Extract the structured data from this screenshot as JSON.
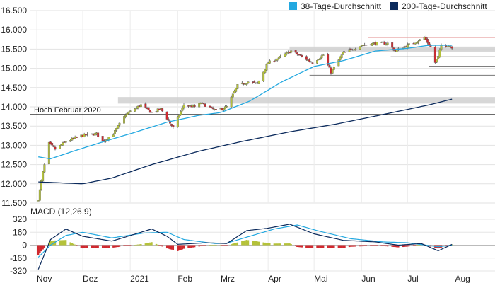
{
  "chart_data": [
    {
      "type": "candlestick",
      "panel": "price",
      "legend": {
        "placement": "top-right",
        "items": [
          {
            "label": "38-Tage-Durchschnitt",
            "color": "#23a8e0"
          },
          {
            "label": "200-Tage-Durchschnitt",
            "color": "#0b2a5c"
          }
        ]
      },
      "ylim": [
        11500,
        16500
      ],
      "y_ticks": [
        "16.500",
        "16.000",
        "15.500",
        "15.000",
        "14.500",
        "14.000",
        "13.500",
        "13.000",
        "12.500",
        "12.000",
        "11.500"
      ],
      "y_tick_values": [
        16500,
        16000,
        15500,
        15000,
        14500,
        14000,
        13500,
        13000,
        12500,
        12000,
        11500
      ],
      "x_ticks": [
        {
          "label": "Nov",
          "date": "2020-11-01"
        },
        {
          "label": "Dez",
          "date": "2020-12-01"
        },
        {
          "label": "2021",
          "date": "2021-01-01"
        },
        {
          "label": "Feb",
          "date": "2021-02-01"
        },
        {
          "label": "Mrz",
          "date": "2021-03-01"
        },
        {
          "label": "Apr",
          "date": "2021-04-01"
        },
        {
          "label": "Mai",
          "date": "2021-05-01"
        },
        {
          "label": "Jun",
          "date": "2021-06-01"
        },
        {
          "label": "Jul",
          "date": "2021-07-01"
        },
        {
          "label": "Aug",
          "date": "2021-08-01"
        }
      ],
      "grid": true,
      "colors": {
        "up": "#b5c23a",
        "down": "#d0282e",
        "ma38": "#23a8e0",
        "ma200": "#0b2a5c"
      },
      "annotation": {
        "label": "Hoch Februar 2020",
        "value": 13795
      },
      "bands": [
        {
          "from": 14140,
          "to": 14200,
          "x_start": "2020-12-24",
          "x_end": "2021-08-31",
          "color": "#d0d0d0"
        },
        {
          "from": 15490,
          "to": 15510,
          "x_start": "2021-04-15",
          "x_end": "2021-08-31",
          "color": "#d0d0d0"
        }
      ],
      "levels": [
        {
          "value": 15800,
          "x_start": "2021-06-05",
          "color": "#e8a0a0"
        },
        {
          "value": 15300,
          "x_start": "2021-06-20",
          "color": "#777777"
        },
        {
          "value": 15050,
          "x_start": "2021-07-15",
          "color": "#333333"
        },
        {
          "value": 14820,
          "x_start": "2021-04-28",
          "color": "#777777"
        }
      ],
      "anchors": [
        [
          "2020-11-02",
          11600
        ],
        [
          "2020-11-05",
          12300
        ],
        [
          "2020-11-09",
          13050
        ],
        [
          "2020-11-13",
          12900
        ],
        [
          "2020-11-20",
          13100
        ],
        [
          "2020-11-30",
          13250
        ],
        [
          "2020-12-10",
          13300
        ],
        [
          "2020-12-14",
          13100
        ],
        [
          "2020-12-21",
          13300
        ],
        [
          "2020-12-29",
          13800
        ],
        [
          "2021-01-08",
          14050
        ],
        [
          "2021-01-15",
          13850
        ],
        [
          "2021-01-21",
          13950
        ],
        [
          "2021-01-29",
          13450
        ],
        [
          "2021-02-05",
          14050
        ],
        [
          "2021-02-12",
          14000
        ],
        [
          "2021-02-16",
          14100
        ],
        [
          "2021-02-26",
          13900
        ],
        [
          "2021-03-05",
          14000
        ],
        [
          "2021-03-12",
          14550
        ],
        [
          "2021-03-19",
          14650
        ],
        [
          "2021-03-25",
          14600
        ],
        [
          "2021-04-01",
          15150
        ],
        [
          "2021-04-07",
          15250
        ],
        [
          "2021-04-16",
          15450
        ],
        [
          "2021-04-23",
          15300
        ],
        [
          "2021-04-30",
          15150
        ],
        [
          "2021-05-07",
          15350
        ],
        [
          "2021-05-12",
          14900
        ],
        [
          "2021-05-20",
          15400
        ],
        [
          "2021-06-01",
          15600
        ],
        [
          "2021-06-10",
          15650
        ],
        [
          "2021-06-18",
          15650
        ],
        [
          "2021-06-23",
          15450
        ],
        [
          "2021-07-01",
          15600
        ],
        [
          "2021-07-07",
          15700
        ],
        [
          "2021-07-12",
          15800
        ],
        [
          "2021-07-16",
          15550
        ],
        [
          "2021-07-19",
          15150
        ],
        [
          "2021-07-21",
          15300
        ],
        [
          "2021-07-23",
          15600
        ],
        [
          "2021-07-27",
          15600
        ],
        [
          "2021-07-30",
          15550
        ]
      ],
      "ma38_anchors": [
        [
          "2020-11-02",
          12700
        ],
        [
          "2020-11-10",
          12650
        ],
        [
          "2020-11-25",
          12850
        ],
        [
          "2020-12-15",
          13100
        ],
        [
          "2021-01-05",
          13350
        ],
        [
          "2021-01-25",
          13600
        ],
        [
          "2021-02-15",
          13780
        ],
        [
          "2021-03-01",
          13850
        ],
        [
          "2021-03-20",
          14150
        ],
        [
          "2021-04-10",
          14650
        ],
        [
          "2021-05-01",
          15050
        ],
        [
          "2021-05-20",
          15200
        ],
        [
          "2021-06-10",
          15450
        ],
        [
          "2021-07-01",
          15520
        ],
        [
          "2021-07-15",
          15600
        ],
        [
          "2021-07-30",
          15600
        ]
      ],
      "ma200_anchors": [
        [
          "2020-11-02",
          12050
        ],
        [
          "2020-12-01",
          12000
        ],
        [
          "2020-12-20",
          12150
        ],
        [
          "2021-01-15",
          12500
        ],
        [
          "2021-02-15",
          12850
        ],
        [
          "2021-03-15",
          13100
        ],
        [
          "2021-04-15",
          13350
        ],
        [
          "2021-05-15",
          13550
        ],
        [
          "2021-06-15",
          13800
        ],
        [
          "2021-07-15",
          14050
        ],
        [
          "2021-07-30",
          14200
        ]
      ]
    },
    {
      "type": "line+bar",
      "panel": "macd",
      "title": "MACD (12,26,9)",
      "ylim": [
        -320,
        320
      ],
      "y_ticks": [
        "320",
        "160",
        "0",
        "-160",
        "-320"
      ],
      "y_tick_values": [
        320,
        160,
        0,
        -160,
        -320
      ],
      "grid": true,
      "colors": {
        "macd": "#0b2a5c",
        "signal": "#23a8e0",
        "hist_pos": "#b5c23a",
        "hist_neg": "#d0282e"
      },
      "macd_anchors": [
        [
          "2020-11-02",
          -300
        ],
        [
          "2020-11-05",
          -160
        ],
        [
          "2020-11-10",
          70
        ],
        [
          "2020-11-20",
          200
        ],
        [
          "2020-12-01",
          110
        ],
        [
          "2020-12-20",
          50
        ],
        [
          "2021-01-08",
          160
        ],
        [
          "2021-01-15",
          200
        ],
        [
          "2021-01-25",
          110
        ],
        [
          "2021-02-01",
          10
        ],
        [
          "2021-02-20",
          30
        ],
        [
          "2021-03-05",
          20
        ],
        [
          "2021-03-18",
          180
        ],
        [
          "2021-04-01",
          210
        ],
        [
          "2021-04-15",
          260
        ],
        [
          "2021-05-01",
          140
        ],
        [
          "2021-05-20",
          60
        ],
        [
          "2021-06-10",
          40
        ],
        [
          "2021-06-25",
          0
        ],
        [
          "2021-07-10",
          20
        ],
        [
          "2021-07-21",
          -70
        ],
        [
          "2021-07-30",
          10
        ]
      ],
      "signal_anchors": [
        [
          "2020-11-02",
          -150
        ],
        [
          "2020-11-10",
          0
        ],
        [
          "2020-11-20",
          120
        ],
        [
          "2020-12-01",
          160
        ],
        [
          "2020-12-20",
          90
        ],
        [
          "2021-01-10",
          150
        ],
        [
          "2021-01-25",
          160
        ],
        [
          "2021-02-05",
          70
        ],
        [
          "2021-02-25",
          20
        ],
        [
          "2021-03-05",
          25
        ],
        [
          "2021-03-20",
          110
        ],
        [
          "2021-04-05",
          200
        ],
        [
          "2021-04-20",
          250
        ],
        [
          "2021-05-05",
          170
        ],
        [
          "2021-05-25",
          80
        ],
        [
          "2021-06-15",
          40
        ],
        [
          "2021-07-01",
          30
        ],
        [
          "2021-07-21",
          -20
        ],
        [
          "2021-07-30",
          0
        ]
      ]
    }
  ]
}
